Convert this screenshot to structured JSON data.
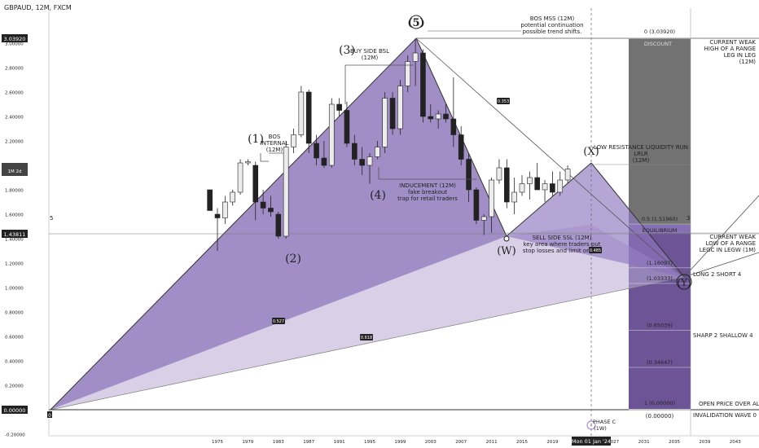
{
  "title": "GBPAUD, 12M, FXCM",
  "chart_data": {
    "type": "candlestick",
    "symbol": "GBPAUD",
    "timeframe": "12M",
    "source": "FXCM",
    "ylim": [
      -0.2,
      3.2
    ],
    "y_ticks": [
      "-0.20000",
      "0.00000",
      "0.20000",
      "0.40000",
      "0.60000",
      "0.80000",
      "1.00000",
      "1.20000",
      "1.40000",
      "1.60000",
      "1.80000",
      "2.00000",
      "2.20000",
      "2.40000",
      "2.60000",
      "2.80000",
      "3.00000"
    ],
    "y_tick_values": [
      -0.2,
      0,
      0.2,
      0.4,
      0.6,
      0.8,
      1.0,
      1.2,
      1.4,
      1.6,
      1.8,
      2.0,
      2.2,
      2.4,
      2.6,
      2.8,
      3.0
    ],
    "x_ticks": [
      "1975",
      "1979",
      "1983",
      "1987",
      "1991",
      "1995",
      "1999",
      "2003",
      "2007",
      "2011",
      "2015",
      "2019",
      "2027",
      "2031",
      "2035",
      "2039",
      "2043"
    ],
    "x_tick_years": [
      1975,
      1979,
      1983,
      1987,
      1991,
      1995,
      1999,
      2003,
      2007,
      2011,
      2015,
      2019,
      2027,
      2031,
      2035,
      2039,
      2043
    ],
    "price_labels": {
      "high": "3.03920",
      "current": "1.43811",
      "current_sub": "1M 2d",
      "zero": "0.00000",
      "x_cursor": "Mon 01 Jan '24"
    },
    "candles": [
      {
        "y": 1974,
        "o": 1.8,
        "h": 1.8,
        "l": 1.63,
        "c": 1.63
      },
      {
        "y": 1975,
        "o": 1.6,
        "h": 1.65,
        "l": 1.3,
        "c": 1.57
      },
      {
        "y": 1976,
        "o": 1.57,
        "h": 1.75,
        "l": 1.52,
        "c": 1.7
      },
      {
        "y": 1977,
        "o": 1.7,
        "h": 1.8,
        "l": 1.67,
        "c": 1.78
      },
      {
        "y": 1978,
        "o": 1.78,
        "h": 2.05,
        "l": 1.76,
        "c": 2.02
      },
      {
        "y": 1979,
        "o": 2.02,
        "h": 2.05,
        "l": 2.0,
        "c": 2.03
      },
      {
        "y": 1980,
        "o": 2.0,
        "h": 2.03,
        "l": 1.55,
        "c": 1.7
      },
      {
        "y": 1981,
        "o": 1.7,
        "h": 1.8,
        "l": 1.6,
        "c": 1.65
      },
      {
        "y": 1982,
        "o": 1.65,
        "h": 1.75,
        "l": 1.58,
        "c": 1.62
      },
      {
        "y": 1983,
        "o": 1.6,
        "h": 1.62,
        "l": 1.4,
        "c": 1.42
      },
      {
        "y": 1984,
        "o": 1.42,
        "h": 2.2,
        "l": 1.4,
        "c": 2.15
      },
      {
        "y": 1985,
        "o": 2.15,
        "h": 2.3,
        "l": 2.1,
        "c": 2.25
      },
      {
        "y": 1986,
        "o": 2.25,
        "h": 2.65,
        "l": 2.23,
        "c": 2.6
      },
      {
        "y": 1987,
        "o": 2.6,
        "h": 2.62,
        "l": 2.1,
        "c": 2.18
      },
      {
        "y": 1988,
        "o": 2.18,
        "h": 2.25,
        "l": 2.0,
        "c": 2.06
      },
      {
        "y": 1989,
        "o": 2.06,
        "h": 2.2,
        "l": 1.98,
        "c": 2.0
      },
      {
        "y": 1990,
        "o": 2.0,
        "h": 2.55,
        "l": 1.98,
        "c": 2.5
      },
      {
        "y": 1991,
        "o": 2.5,
        "h": 2.55,
        "l": 2.4,
        "c": 2.45
      },
      {
        "y": 1992,
        "o": 2.45,
        "h": 2.52,
        "l": 2.15,
        "c": 2.18
      },
      {
        "y": 1993,
        "o": 2.18,
        "h": 2.25,
        "l": 2.0,
        "c": 2.05
      },
      {
        "y": 1994,
        "o": 2.05,
        "h": 2.15,
        "l": 1.92,
        "c": 2.0
      },
      {
        "y": 1995,
        "o": 2.0,
        "h": 2.1,
        "l": 1.85,
        "c": 2.07
      },
      {
        "y": 1996,
        "o": 2.07,
        "h": 2.2,
        "l": 2.05,
        "c": 2.15
      },
      {
        "y": 1997,
        "o": 2.15,
        "h": 2.6,
        "l": 2.1,
        "c": 2.55
      },
      {
        "y": 1998,
        "o": 2.55,
        "h": 2.6,
        "l": 2.25,
        "c": 2.3
      },
      {
        "y": 1999,
        "o": 2.3,
        "h": 2.7,
        "l": 2.25,
        "c": 2.65
      },
      {
        "y": 2000,
        "o": 2.65,
        "h": 2.9,
        "l": 2.6,
        "c": 2.85
      },
      {
        "y": 2001,
        "o": 2.85,
        "h": 3.03,
        "l": 2.65,
        "c": 2.92
      },
      {
        "y": 2002,
        "o": 2.92,
        "h": 2.95,
        "l": 2.35,
        "c": 2.4
      },
      {
        "y": 2003,
        "o": 2.4,
        "h": 2.5,
        "l": 2.35,
        "c": 2.38
      },
      {
        "y": 2004,
        "o": 2.38,
        "h": 2.45,
        "l": 2.3,
        "c": 2.42
      },
      {
        "y": 2005,
        "o": 2.42,
        "h": 2.5,
        "l": 2.35,
        "c": 2.38
      },
      {
        "y": 2006,
        "o": 2.38,
        "h": 2.72,
        "l": 2.15,
        "c": 2.25
      },
      {
        "y": 2007,
        "o": 2.25,
        "h": 2.32,
        "l": 2.0,
        "c": 2.05
      },
      {
        "y": 2008,
        "o": 2.05,
        "h": 2.1,
        "l": 1.7,
        "c": 1.8
      },
      {
        "y": 2009,
        "o": 1.8,
        "h": 1.82,
        "l": 1.52,
        "c": 1.55
      },
      {
        "y": 2010,
        "o": 1.55,
        "h": 1.6,
        "l": 1.43,
        "c": 1.58
      },
      {
        "y": 2011,
        "o": 1.58,
        "h": 1.9,
        "l": 1.45,
        "c": 1.88
      },
      {
        "y": 2012,
        "o": 1.88,
        "h": 2.05,
        "l": 1.85,
        "c": 1.98
      },
      {
        "y": 2013,
        "o": 1.98,
        "h": 2.05,
        "l": 1.65,
        "c": 1.7
      },
      {
        "y": 2014,
        "o": 1.7,
        "h": 1.9,
        "l": 1.6,
        "c": 1.78
      },
      {
        "y": 2015,
        "o": 1.78,
        "h": 1.92,
        "l": 1.75,
        "c": 1.85
      },
      {
        "y": 2016,
        "o": 1.85,
        "h": 1.95,
        "l": 1.72,
        "c": 1.9
      },
      {
        "y": 2017,
        "o": 1.9,
        "h": 2.02,
        "l": 1.8,
        "c": 1.8
      },
      {
        "y": 2018,
        "o": 1.8,
        "h": 1.88,
        "l": 1.7,
        "c": 1.85
      },
      {
        "y": 2019,
        "o": 1.85,
        "h": 1.95,
        "l": 1.75,
        "c": 1.78
      },
      {
        "y": 2020,
        "o": 1.78,
        "h": 1.95,
        "l": 1.75,
        "c": 1.88
      },
      {
        "y": 2021,
        "o": 1.88,
        "h": 2.0,
        "l": 1.85,
        "c": 1.97
      }
    ],
    "fib_levels": [
      {
        "label": "0 (3.03920)",
        "value": 3.0392
      },
      {
        "label": "0.5 (1.51960)",
        "value": 1.5196
      },
      {
        "label": "(1.16097)",
        "value": 1.16097
      },
      {
        "label": "(1.03333)",
        "value": 1.03333
      },
      {
        "label": "(0.65039)",
        "value": 0.65039
      },
      {
        "label": "(0.34647)",
        "value": 0.34647
      },
      {
        "label": "1 (0.00000)",
        "value": 0.0
      }
    ]
  },
  "annotations": {
    "w1": "(1)",
    "w1_text": [
      "BOS",
      "INTERNAL",
      "(12M)"
    ],
    "w2": "(2)",
    "w3": "(3)",
    "w3_text": [
      "BUY SIDE BSL",
      "(12M)"
    ],
    "w4": "(4)",
    "w4_text": [
      "INDUCEMENT (12M)",
      "fake breakout",
      "trap for retail traders"
    ],
    "w5": "(5)",
    "bos_text": [
      "BOS MSS (12M)",
      "potential continuation",
      "possible trend shifts."
    ],
    "x_label": "(X)",
    "x_text": [
      "LOW RESISTANCE LIQUIDITY RUN",
      "LRLR",
      "(12M)"
    ],
    "w_label": "(W)",
    "sell_text": [
      "SELL SIDE SSL (12M)",
      "key area where traders put",
      "stop losses and limit orders"
    ],
    "y_label": "(Y)",
    "discount": "DISCOUNT",
    "equilibrium": "EQUILIBRIUM",
    "right_notes": [
      [
        "CURRENT WEAK",
        "HIGH OF A RANGE",
        "LEG IN LEG",
        "(12M)"
      ],
      [
        "CURRENT WEAK",
        "LOW OF A RANGE",
        "LEGC IN LEGW (1M)"
      ],
      [
        "LONG 2 SHORT 4"
      ],
      [
        "SHARP 2 SHALLOW 4"
      ],
      [
        "OPEN PRICE OVER ALL (M)"
      ],
      [
        "INVALIDATION WAVE 0"
      ]
    ],
    "phase": [
      "PHASE C",
      "(1W)"
    ],
    "ratio_1": "0.353",
    "ratio_2": "0.527",
    "ratio_3": "0.618",
    "ratio_4": "0.485",
    "num_5": "5",
    "num_3": "3",
    "zero_mark": "0",
    "fib_bottom": "(0.00000)"
  }
}
